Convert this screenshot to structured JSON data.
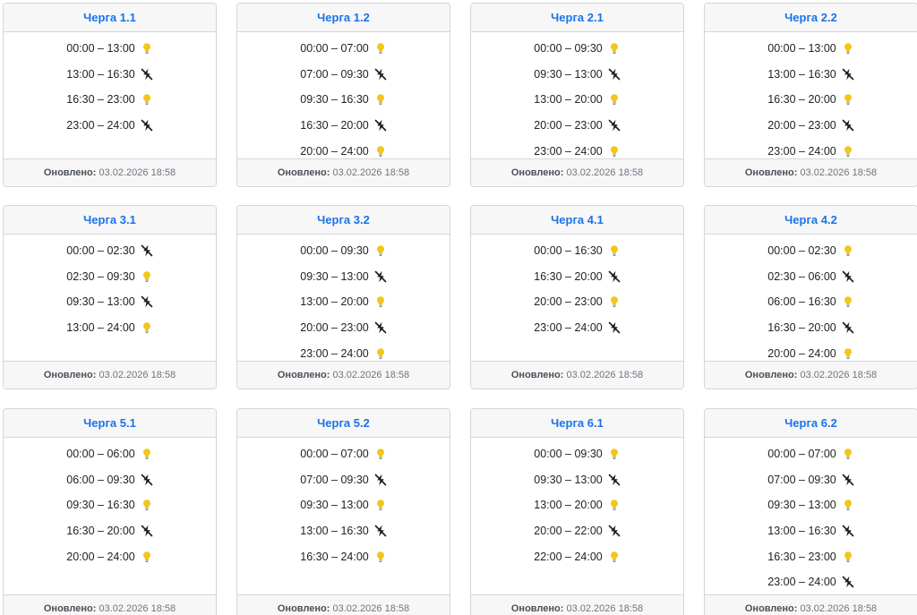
{
  "footer_label": "Оновлено:",
  "icons": {
    "on": "lightbulb-icon",
    "off": "no-power-icon"
  },
  "colors": {
    "title": "#1a73e8",
    "bulb": "#f5c518",
    "off_icon": "#1a1a1a",
    "header_bg": "#f7f7f8",
    "border": "#d3d6da"
  },
  "queues": [
    {
      "title": "Черга 1.1",
      "updated": "03.02.2026 18:58",
      "slots": [
        {
          "time": "00:00 – 13:00",
          "state": "on"
        },
        {
          "time": "13:00 – 16:30",
          "state": "off"
        },
        {
          "time": "16:30 – 23:00",
          "state": "on"
        },
        {
          "time": "23:00 – 24:00",
          "state": "off"
        }
      ]
    },
    {
      "title": "Черга 1.2",
      "updated": "03.02.2026 18:58",
      "slots": [
        {
          "time": "00:00 – 07:00",
          "state": "on"
        },
        {
          "time": "07:00 – 09:30",
          "state": "off"
        },
        {
          "time": "09:30 – 16:30",
          "state": "on"
        },
        {
          "time": "16:30 – 20:00",
          "state": "off"
        },
        {
          "time": "20:00 – 24:00",
          "state": "on"
        }
      ]
    },
    {
      "title": "Черга 2.1",
      "updated": "03.02.2026 18:58",
      "slots": [
        {
          "time": "00:00 – 09:30",
          "state": "on"
        },
        {
          "time": "09:30 – 13:00",
          "state": "off"
        },
        {
          "time": "13:00 – 20:00",
          "state": "on"
        },
        {
          "time": "20:00 – 23:00",
          "state": "off"
        },
        {
          "time": "23:00 – 24:00",
          "state": "on"
        }
      ]
    },
    {
      "title": "Черга 2.2",
      "updated": "03.02.2026 18:58",
      "slots": [
        {
          "time": "00:00 – 13:00",
          "state": "on"
        },
        {
          "time": "13:00 – 16:30",
          "state": "off"
        },
        {
          "time": "16:30 – 20:00",
          "state": "on"
        },
        {
          "time": "20:00 – 23:00",
          "state": "off"
        },
        {
          "time": "23:00 – 24:00",
          "state": "on"
        }
      ]
    },
    {
      "title": "Черга 3.1",
      "updated": "03.02.2026 18:58",
      "slots": [
        {
          "time": "00:00 – 02:30",
          "state": "off"
        },
        {
          "time": "02:30 – 09:30",
          "state": "on"
        },
        {
          "time": "09:30 – 13:00",
          "state": "off"
        },
        {
          "time": "13:00 – 24:00",
          "state": "on"
        }
      ]
    },
    {
      "title": "Черга 3.2",
      "updated": "03.02.2026 18:58",
      "slots": [
        {
          "time": "00:00 – 09:30",
          "state": "on"
        },
        {
          "time": "09:30 – 13:00",
          "state": "off"
        },
        {
          "time": "13:00 – 20:00",
          "state": "on"
        },
        {
          "time": "20:00 – 23:00",
          "state": "off"
        },
        {
          "time": "23:00 – 24:00",
          "state": "on"
        }
      ]
    },
    {
      "title": "Черга 4.1",
      "updated": "03.02.2026 18:58",
      "slots": [
        {
          "time": "00:00 – 16:30",
          "state": "on"
        },
        {
          "time": "16:30 – 20:00",
          "state": "off"
        },
        {
          "time": "20:00 – 23:00",
          "state": "on"
        },
        {
          "time": "23:00 – 24:00",
          "state": "off"
        }
      ]
    },
    {
      "title": "Черга 4.2",
      "updated": "03.02.2026 18:58",
      "slots": [
        {
          "time": "00:00 – 02:30",
          "state": "on"
        },
        {
          "time": "02:30 – 06:00",
          "state": "off"
        },
        {
          "time": "06:00 – 16:30",
          "state": "on"
        },
        {
          "time": "16:30 – 20:00",
          "state": "off"
        },
        {
          "time": "20:00 – 24:00",
          "state": "on"
        }
      ]
    },
    {
      "title": "Черга 5.1",
      "updated": "03.02.2026 18:58",
      "slots": [
        {
          "time": "00:00 – 06:00",
          "state": "on"
        },
        {
          "time": "06:00 – 09:30",
          "state": "off"
        },
        {
          "time": "09:30 – 16:30",
          "state": "on"
        },
        {
          "time": "16:30 – 20:00",
          "state": "off"
        },
        {
          "time": "20:00 – 24:00",
          "state": "on"
        }
      ]
    },
    {
      "title": "Черга 5.2",
      "updated": "03.02.2026 18:58",
      "slots": [
        {
          "time": "00:00 – 07:00",
          "state": "on"
        },
        {
          "time": "07:00 – 09:30",
          "state": "off"
        },
        {
          "time": "09:30 – 13:00",
          "state": "on"
        },
        {
          "time": "13:00 – 16:30",
          "state": "off"
        },
        {
          "time": "16:30 – 24:00",
          "state": "on"
        }
      ]
    },
    {
      "title": "Черга 6.1",
      "updated": "03.02.2026 18:58",
      "slots": [
        {
          "time": "00:00 – 09:30",
          "state": "on"
        },
        {
          "time": "09:30 – 13:00",
          "state": "off"
        },
        {
          "time": "13:00 – 20:00",
          "state": "on"
        },
        {
          "time": "20:00 – 22:00",
          "state": "off"
        },
        {
          "time": "22:00 – 24:00",
          "state": "on"
        }
      ]
    },
    {
      "title": "Черга 6.2",
      "updated": "03.02.2026 18:58",
      "slots": [
        {
          "time": "00:00 – 07:00",
          "state": "on"
        },
        {
          "time": "07:00 – 09:30",
          "state": "off"
        },
        {
          "time": "09:30 – 13:00",
          "state": "on"
        },
        {
          "time": "13:00 – 16:30",
          "state": "off"
        },
        {
          "time": "16:30 – 23:00",
          "state": "on"
        },
        {
          "time": "23:00 – 24:00",
          "state": "off"
        }
      ]
    }
  ]
}
